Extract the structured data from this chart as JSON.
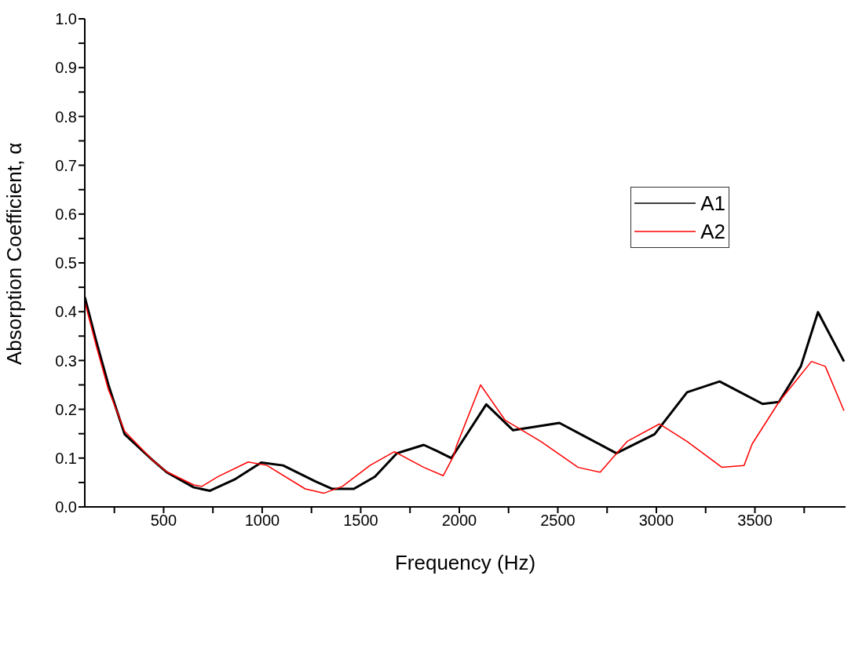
{
  "chart_data": {
    "type": "line",
    "xlabel": "Frequency (Hz)",
    "ylabel": "Absorption Coefficient, α",
    "xlim": [
      100,
      3960
    ],
    "ylim": [
      0,
      1
    ],
    "xticks": [
      {
        "value": 250,
        "label": null
      },
      500,
      {
        "value": 750,
        "label": null
      },
      1000,
      {
        "value": 1250,
        "label": null
      },
      1500,
      {
        "value": 1750,
        "label": null
      },
      2000,
      {
        "value": 2250,
        "label": null
      },
      2500,
      {
        "value": 2750,
        "label": null
      },
      3000,
      {
        "value": 3250,
        "label": null
      },
      3500,
      {
        "value": 3750,
        "label": null
      }
    ],
    "yticks": [
      {
        "value": 0,
        "label": "0.0"
      },
      {
        "value": 0.05,
        "label": null
      },
      0.1,
      {
        "value": 0.15,
        "label": null
      },
      0.2,
      {
        "value": 0.25,
        "label": null
      },
      0.3,
      {
        "value": 0.35,
        "label": null
      },
      0.4,
      {
        "value": 0.45,
        "label": null
      },
      0.5,
      {
        "value": 0.55,
        "label": null
      },
      0.6,
      {
        "value": 0.65,
        "label": null
      },
      0.7,
      {
        "value": 0.75,
        "label": null
      },
      0.8,
      {
        "value": 0.85,
        "label": null
      },
      0.9,
      {
        "value": 0.95,
        "label": null
      },
      {
        "value": 1,
        "label": "1.0"
      }
    ],
    "legend": "right",
    "marker": "none",
    "line_style": "solid",
    "series": [
      {
        "name": "A1",
        "color": "#000000",
        "x": [
          100,
          158,
          220,
          240,
          302,
          446,
          516,
          653,
          735,
          859,
          995,
          1106,
          1271,
          1354,
          1465,
          1572,
          1684,
          1820,
          1890,
          1960,
          2137,
          2273,
          2508,
          2644,
          2797,
          2991,
          3156,
          3321,
          3539,
          3622,
          3733,
          3820,
          3952
        ],
        "values": [
          0.43,
          0.34,
          0.25,
          0.225,
          0.149,
          0.095,
          0.071,
          0.04,
          0.033,
          0.056,
          0.091,
          0.085,
          0.052,
          0.037,
          0.037,
          0.062,
          0.11,
          0.127,
          0.114,
          0.1,
          0.21,
          0.157,
          0.172,
          0.143,
          0.11,
          0.149,
          0.235,
          0.257,
          0.211,
          0.215,
          0.288,
          0.399,
          0.298
        ]
      },
      {
        "name": "A2",
        "color": "#ff0000",
        "x": [
          100,
          158,
          220,
          240,
          302,
          446,
          516,
          653,
          694,
          776,
          929,
          1024,
          1218,
          1312,
          1407,
          1547,
          1671,
          1820,
          1919,
          1972,
          1985,
          2108,
          2232,
          2414,
          2603,
          2715,
          2851,
          3016,
          3156,
          3333,
          3445,
          3486,
          3622,
          3787,
          3857,
          3952
        ],
        "values": [
          0.42,
          0.33,
          0.24,
          0.22,
          0.155,
          0.095,
          0.072,
          0.045,
          0.042,
          0.062,
          0.092,
          0.085,
          0.037,
          0.028,
          0.042,
          0.085,
          0.113,
          0.081,
          0.064,
          0.105,
          0.124,
          0.25,
          0.178,
          0.134,
          0.081,
          0.071,
          0.134,
          0.17,
          0.134,
          0.081,
          0.085,
          0.129,
          0.215,
          0.298,
          0.288,
          0.197
        ]
      }
    ]
  }
}
